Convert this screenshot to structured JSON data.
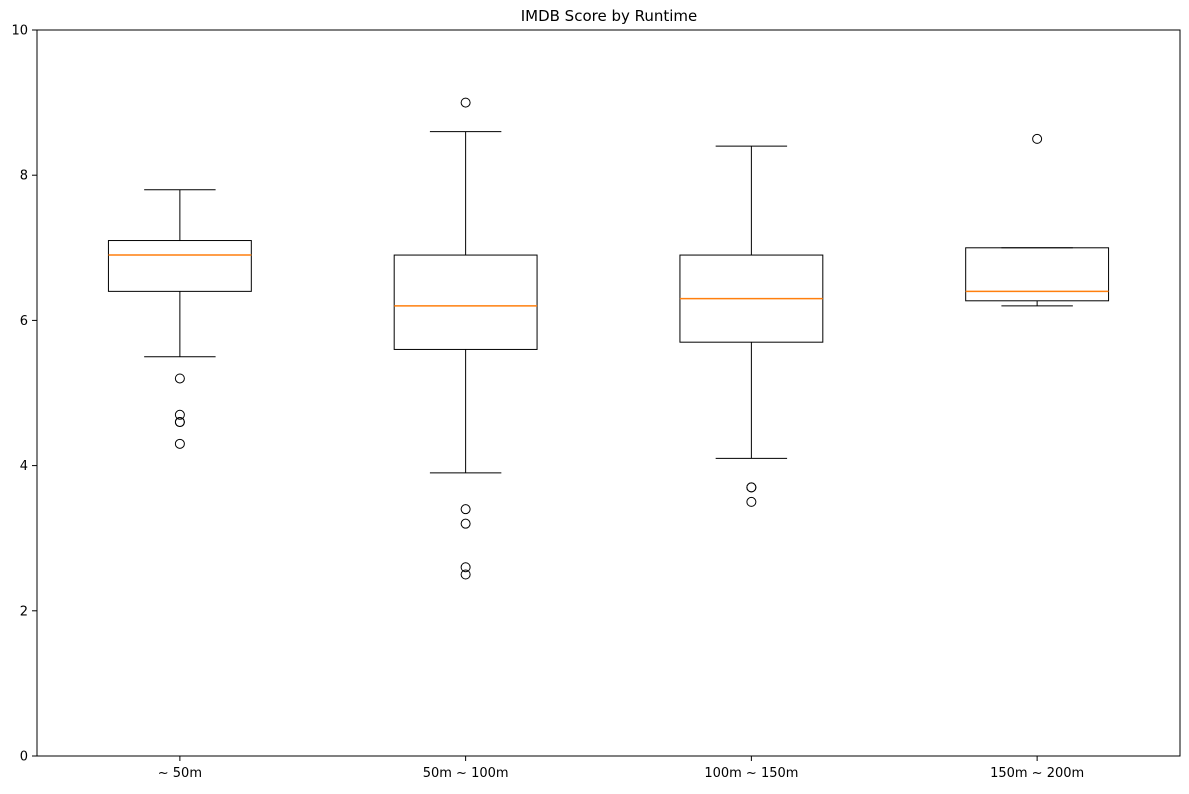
{
  "chart_data": {
    "type": "box",
    "title": "IMDB Score by Runtime",
    "xlabel": "",
    "ylabel": "",
    "ylim": [
      0,
      10
    ],
    "yticks": [
      0,
      2,
      4,
      6,
      8,
      10
    ],
    "grid": false,
    "categories": [
      "~ 50m",
      "50m ~ 100m",
      "100m ~ 150m",
      "150m ~ 200m"
    ],
    "boxes": [
      {
        "whislo": 5.5,
        "q1": 6.4,
        "med": 6.9,
        "q3": 7.1,
        "whishi": 7.8,
        "fliers": [
          5.2,
          4.7,
          4.6,
          4.6,
          4.3
        ]
      },
      {
        "whislo": 3.9,
        "q1": 5.6,
        "med": 6.2,
        "q3": 6.9,
        "whishi": 8.6,
        "fliers": [
          9.0,
          3.4,
          3.2,
          2.6,
          2.5
        ]
      },
      {
        "whislo": 4.1,
        "q1": 5.7,
        "med": 6.3,
        "q3": 6.9,
        "whishi": 8.4,
        "fliers": [
          3.7,
          3.7,
          3.5
        ]
      },
      {
        "whislo": 6.2,
        "q1": 6.27,
        "med": 6.4,
        "q3": 7.0,
        "whishi": 7.0,
        "fliers": [
          8.5
        ]
      }
    ],
    "colors": {
      "box": "#000000",
      "median": "#ff7f0e",
      "flier": "#000000"
    }
  }
}
